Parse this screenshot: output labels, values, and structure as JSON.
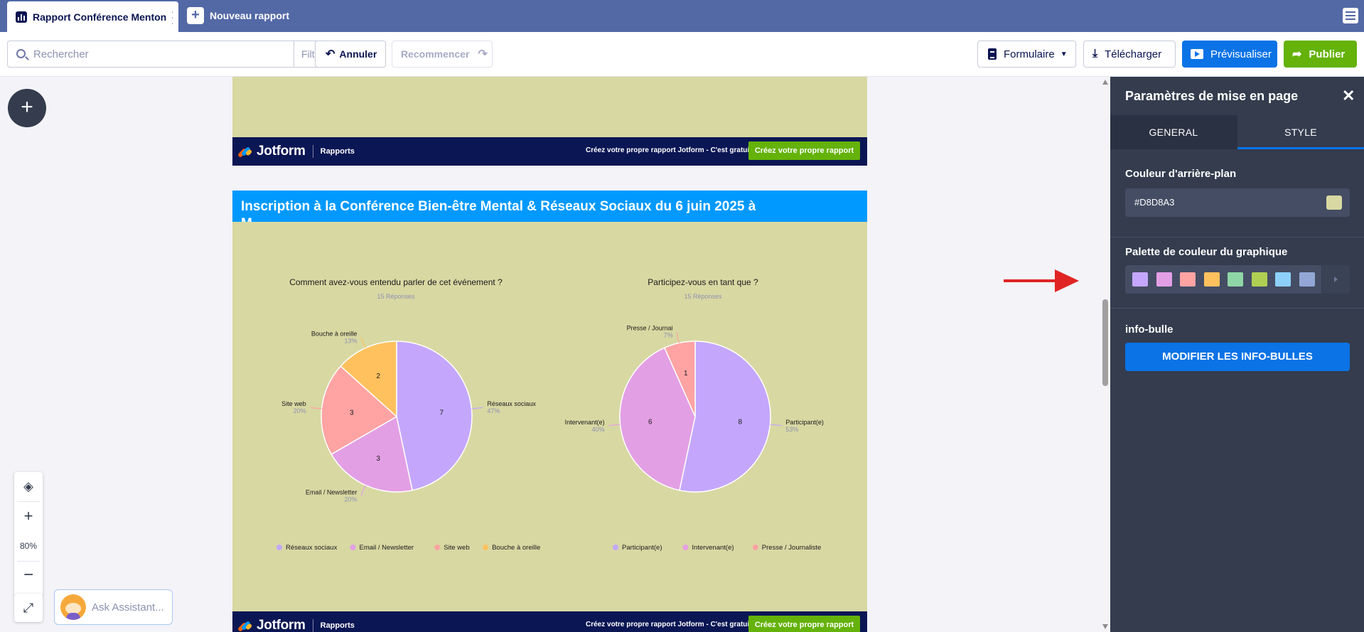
{
  "tabs": {
    "active_title": "Rapport Conférence Menton",
    "new_report_label": "Nouveau rapport"
  },
  "toolbar": {
    "search_placeholder": "Rechercher",
    "filter_label": "Filtre",
    "undo_label": "Annuler",
    "redo_label": "Recommencer",
    "form_label": "Formulaire",
    "download_label": "Télécharger",
    "preview_label": "Prévisualiser",
    "publish_label": "Publier"
  },
  "footer": {
    "logo_text": "Jotform",
    "logo_sub": "Rapports",
    "promo_text": "Créez votre propre rapport Jotform - C'est gratuit",
    "cta_label": "Créez votre propre rapport"
  },
  "report": {
    "title": "Inscription à la Conférence Bien-être Mental & Réseaux Sociaux du 6 juin 2025 à",
    "title_overflow": "M..."
  },
  "chart_data": [
    {
      "type": "pie",
      "title": "Comment avez-vous entendu parler de cet événement ?",
      "subtitle": "15 Réponses",
      "categories": [
        "Réseaux sociaux",
        "Email / Newsletter",
        "Site web",
        "Bouche à oreille"
      ],
      "values": [
        7,
        3,
        3,
        2
      ],
      "percent_labels": [
        "47%",
        "20%",
        "20%",
        "13%"
      ],
      "colors": [
        "#c4a7fc",
        "#e39fe4",
        "#ffa3a3",
        "#ffc15e"
      ],
      "legend": "bottom"
    },
    {
      "type": "pie",
      "title": "Participez-vous en tant que ?",
      "subtitle": "15 Réponses",
      "categories": [
        "Participant(e)",
        "Intervenant(e)",
        "Presse / Journaliste"
      ],
      "values": [
        8,
        6,
        1
      ],
      "percent_labels": [
        "53%",
        "40%",
        "7%"
      ],
      "callout_labels": [
        "Participant(e)",
        "Intervenant(e)",
        "Presse / Journai"
      ],
      "colors": [
        "#c4a7fc",
        "#e39fe4",
        "#ffa3a3"
      ],
      "legend": "bottom"
    }
  ],
  "zoom": {
    "level": "80%"
  },
  "assistant": {
    "label": "Ask Assistant..."
  },
  "panel": {
    "title": "Paramètres de mise en page",
    "tab_general": "GENERAL",
    "tab_style": "STYLE",
    "bg_color_label": "Couleur d'arrière-plan",
    "bg_color_value": "#D8D8A3",
    "palette_label": "Palette de couleur du graphique",
    "palette": [
      "#c4a7fc",
      "#e39fe4",
      "#ffa3a3",
      "#ffc15e",
      "#8fd6a6",
      "#aecf52",
      "#8dd1fb",
      "#93a7d6"
    ],
    "tooltip_label": "info-bulle",
    "tooltip_button": "MODIFIER LES INFO-BULLES"
  },
  "colors": {
    "topbar": "#5369a6",
    "panel_bg": "#343c4e",
    "report_bg": "#D8D8A3",
    "header_blue": "#0099ff",
    "footer_navy": "#0b1654",
    "cta_green": "#64b20a",
    "primary_blue": "#0b73e6",
    "annotation_red": "#e02424"
  },
  "icons": [
    "report-tab-icon",
    "plus-icon",
    "hamburger-icon",
    "search-icon",
    "undo-icon",
    "redo-icon",
    "document-icon",
    "chevron-down-icon",
    "download-icon",
    "play-icon",
    "share-icon",
    "layers-icon",
    "zoom-in-icon",
    "zoom-out-icon",
    "fullscreen-icon",
    "close-icon",
    "chevron-right-icon"
  ]
}
